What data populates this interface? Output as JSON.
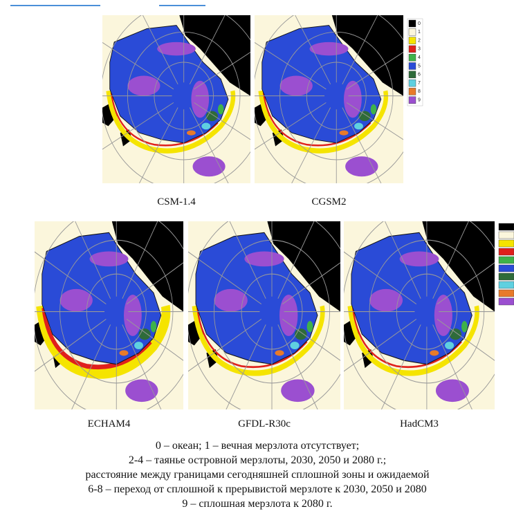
{
  "maps": [
    {
      "label": "CSM-1.4"
    },
    {
      "label": "CGSM2"
    },
    {
      "label": "ECHAM4"
    },
    {
      "label": "GFDL-R30c"
    },
    {
      "label": "HadCM3"
    }
  ],
  "legend": {
    "items": [
      {
        "label": "0",
        "color": "#000000"
      },
      {
        "label": "1",
        "color": "#fbf6dc"
      },
      {
        "label": "2",
        "color": "#f5e400"
      },
      {
        "label": "3",
        "color": "#e0201c"
      },
      {
        "label": "4",
        "color": "#3fb24a"
      },
      {
        "label": "5",
        "color": "#2a4bd7"
      },
      {
        "label": "6",
        "color": "#2e6b3a"
      },
      {
        "label": "7",
        "color": "#5fd0e0"
      },
      {
        "label": "8",
        "color": "#e87a2a"
      },
      {
        "label": "9",
        "color": "#9b4fd0"
      }
    ]
  },
  "caption": [
    "0 – океан; 1 – вечная мерзлота отсутствует;",
    "2-4 – таянье островной мерзлоты, 2030, 2050 и 2080 г.;",
    "расстояние между границами сегодняшней сплошной зоны и ожидаемой",
    "6-8 – переход от сплошной к прерывистой мерзлоте к 2030, 2050 и 2080",
    "9 – сплошная мерзлота к 2080 г."
  ]
}
